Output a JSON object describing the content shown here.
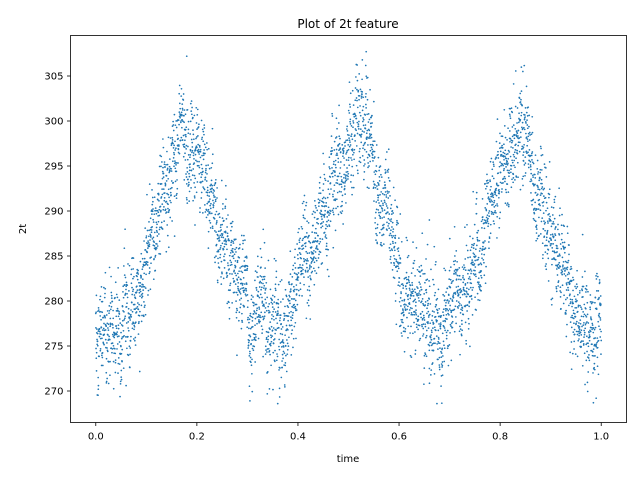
{
  "chart_data": {
    "type": "scatter",
    "title": "Plot of 2t feature",
    "xlabel": "time",
    "ylabel": "2t",
    "xlim": [
      -0.05,
      1.05
    ],
    "ylim": [
      266.5,
      309.5
    ],
    "xticks": [
      0.0,
      0.2,
      0.4,
      0.6,
      0.8,
      1.0
    ],
    "xtick_labels": [
      "0.0",
      "0.2",
      "0.4",
      "0.6",
      "0.8",
      "1.0"
    ],
    "yticks": [
      270,
      275,
      280,
      285,
      290,
      295,
      300,
      305
    ],
    "ytick_labels": [
      "270",
      "275",
      "280",
      "285",
      "290",
      "295",
      "300",
      "305"
    ],
    "grid": false,
    "legend": "none",
    "marker_color": "#1f77b4",
    "n_points": 4000,
    "trend_approx": {
      "x": [
        0.0,
        0.03,
        0.08,
        0.12,
        0.17,
        0.21,
        0.25,
        0.29,
        0.31,
        0.33,
        0.36,
        0.42,
        0.49,
        0.53,
        0.57,
        0.61,
        0.65,
        0.68,
        0.72,
        0.76,
        0.8,
        0.84,
        0.88,
        0.91,
        0.95,
        1.0
      ],
      "y": [
        276,
        276,
        280,
        289,
        298,
        295,
        288,
        281,
        277,
        281,
        275,
        285,
        296,
        300,
        291,
        282,
        278,
        278,
        281,
        286,
        293,
        300,
        290,
        287,
        278,
        277
      ]
    },
    "noise_std": 2.6,
    "envelope": {
      "min": [
        {
          "x": 0.005,
          "y": 270.2
        },
        {
          "x": 0.06,
          "y": 270.6
        },
        {
          "x": 0.305,
          "y": 268.9
        },
        {
          "x": 0.36,
          "y": 268.6
        },
        {
          "x": 0.66,
          "y": 272.5
        },
        {
          "x": 0.675,
          "y": 268.6
        },
        {
          "x": 0.99,
          "y": 269.2
        }
      ],
      "max": [
        {
          "x": 0.18,
          "y": 307.2
        },
        {
          "x": 0.535,
          "y": 307.7
        },
        {
          "x": 0.845,
          "y": 305.5
        },
        {
          "x": 0.66,
          "y": 289.0
        }
      ]
    }
  }
}
